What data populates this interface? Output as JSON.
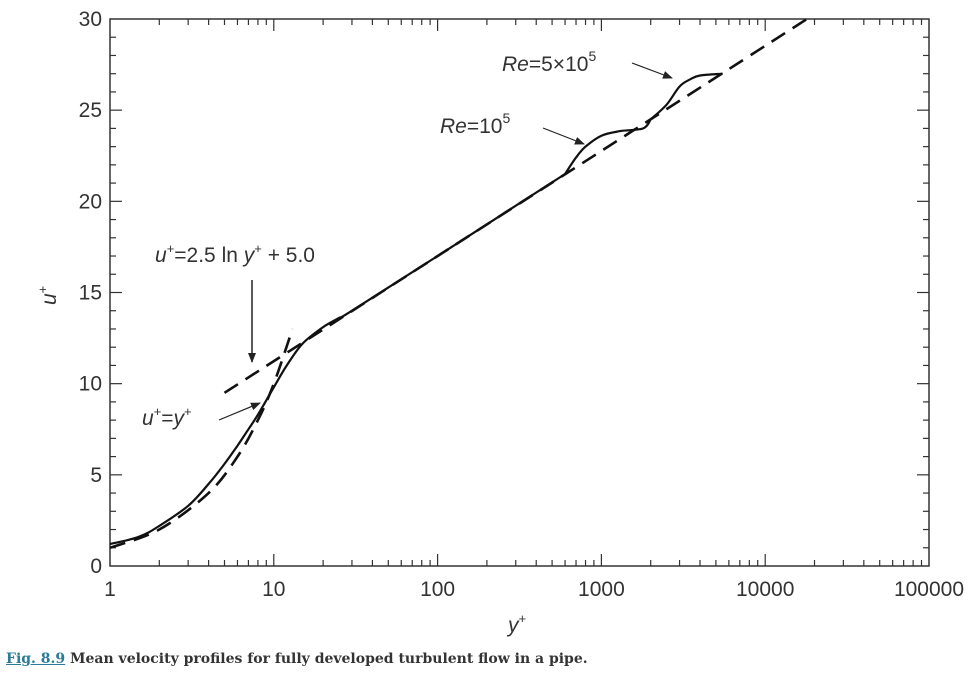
{
  "chart_data": {
    "type": "line",
    "xlabel": "y+",
    "ylabel": "u+",
    "xscale": "log",
    "xlim": [
      1,
      100000
    ],
    "ylim": [
      0,
      30
    ],
    "x_ticks": [
      "1",
      "10",
      "100",
      "1000",
      "10000",
      "100000"
    ],
    "y_ticks": [
      "0",
      "5",
      "10",
      "15",
      "20",
      "25",
      "30"
    ],
    "grid": false,
    "series": [
      {
        "style": "solid",
        "x": [
          1,
          1.5,
          2,
          3,
          4,
          5,
          6,
          7,
          8,
          10,
          12,
          15,
          20,
          25,
          30,
          100,
          600
        ],
        "y": [
          1.2,
          1.6,
          2.2,
          3.3,
          4.5,
          5.6,
          6.6,
          7.5,
          8.3,
          9.8,
          11.0,
          12.2,
          13.1,
          13.6,
          14.0,
          17.0,
          21.5
        ]
      },
      {
        "name": "Re=10^5",
        "style": "solid",
        "x": [
          600,
          700,
          800,
          1000,
          1300,
          1800,
          2000
        ],
        "y": [
          21.5,
          22.4,
          23.0,
          23.6,
          23.85,
          24.0,
          24.5
        ]
      },
      {
        "name": "Re=5x10^5",
        "style": "solid",
        "x": [
          2000,
          2500,
          3000,
          3500,
          4000,
          5500
        ],
        "y": [
          24.5,
          25.3,
          26.3,
          26.7,
          26.9,
          27.0
        ]
      },
      {
        "name": "u+=y+",
        "style": "dashed",
        "x": [
          1,
          2,
          4,
          6,
          8,
          10,
          13
        ],
        "y": [
          1,
          2,
          4,
          6,
          8,
          10,
          13
        ]
      },
      {
        "name": "u+=2.5 ln y+ + 5.0",
        "style": "dashed",
        "x": [
          5,
          18000
        ],
        "y": [
          9.5,
          30
        ]
      }
    ],
    "annotations": {
      "log_law": {
        "prefix": "u",
        "sup1": "+",
        "mid": "=2.5 ln ",
        "var": "y",
        "sup2": "+",
        "suffix": " + 5.0"
      },
      "linear": {
        "prefix": "u",
        "sup1": "+",
        "mid": "=",
        "var": "y",
        "sup2": "+"
      },
      "re1": {
        "re": "Re",
        "eq": "=10",
        "exp": "5"
      },
      "re2": {
        "re": "Re",
        "eq": "=5×10",
        "exp": "5"
      }
    },
    "axis_label_parts": {
      "x_var": "y",
      "x_sup": "+",
      "y_var": "u",
      "y_sup": "+"
    }
  },
  "caption": {
    "fig_label": "Fig. 8.9",
    "text": " Mean velocity profiles for fully developed turbulent flow in a pipe."
  }
}
